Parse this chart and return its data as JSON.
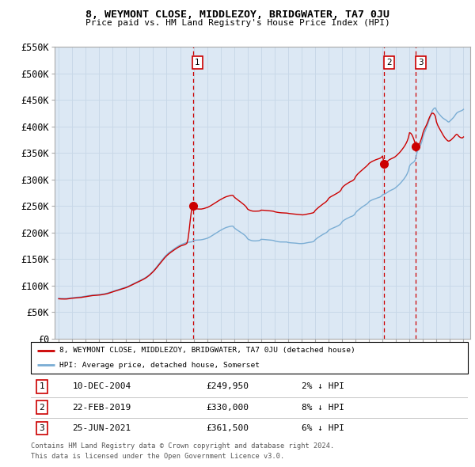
{
  "title": "8, WEYMONT CLOSE, MIDDLEZOY, BRIDGWATER, TA7 0JU",
  "subtitle": "Price paid vs. HM Land Registry's House Price Index (HPI)",
  "legend_line1": "8, WEYMONT CLOSE, MIDDLEZOY, BRIDGWATER, TA7 0JU (detached house)",
  "legend_line2": "HPI: Average price, detached house, Somerset",
  "footer1": "Contains HM Land Registry data © Crown copyright and database right 2024.",
  "footer2": "This data is licensed under the Open Government Licence v3.0.",
  "transactions": [
    {
      "num": 1,
      "date": "10-DEC-2004",
      "price": 249950,
      "pct": "2%",
      "direction": "↓"
    },
    {
      "num": 2,
      "date": "22-FEB-2019",
      "price": 330000,
      "pct": "8%",
      "direction": "↓"
    },
    {
      "num": 3,
      "date": "25-JUN-2021",
      "price": 361500,
      "pct": "6%",
      "direction": "↓"
    }
  ],
  "transaction_years": [
    2004.94,
    2019.13,
    2021.48
  ],
  "transaction_prices": [
    249950,
    330000,
    361500
  ],
  "hpi_color": "#7aadd4",
  "price_color": "#cc0000",
  "vline_color": "#cc0000",
  "grid_color": "#c8d8e8",
  "background_color": "#dce8f4",
  "ylim": [
    0,
    550000
  ],
  "yticks": [
    0,
    50000,
    100000,
    150000,
    200000,
    250000,
    300000,
    350000,
    400000,
    450000,
    500000,
    550000
  ],
  "xlim_left": 1994.7,
  "xlim_right": 2025.5
}
